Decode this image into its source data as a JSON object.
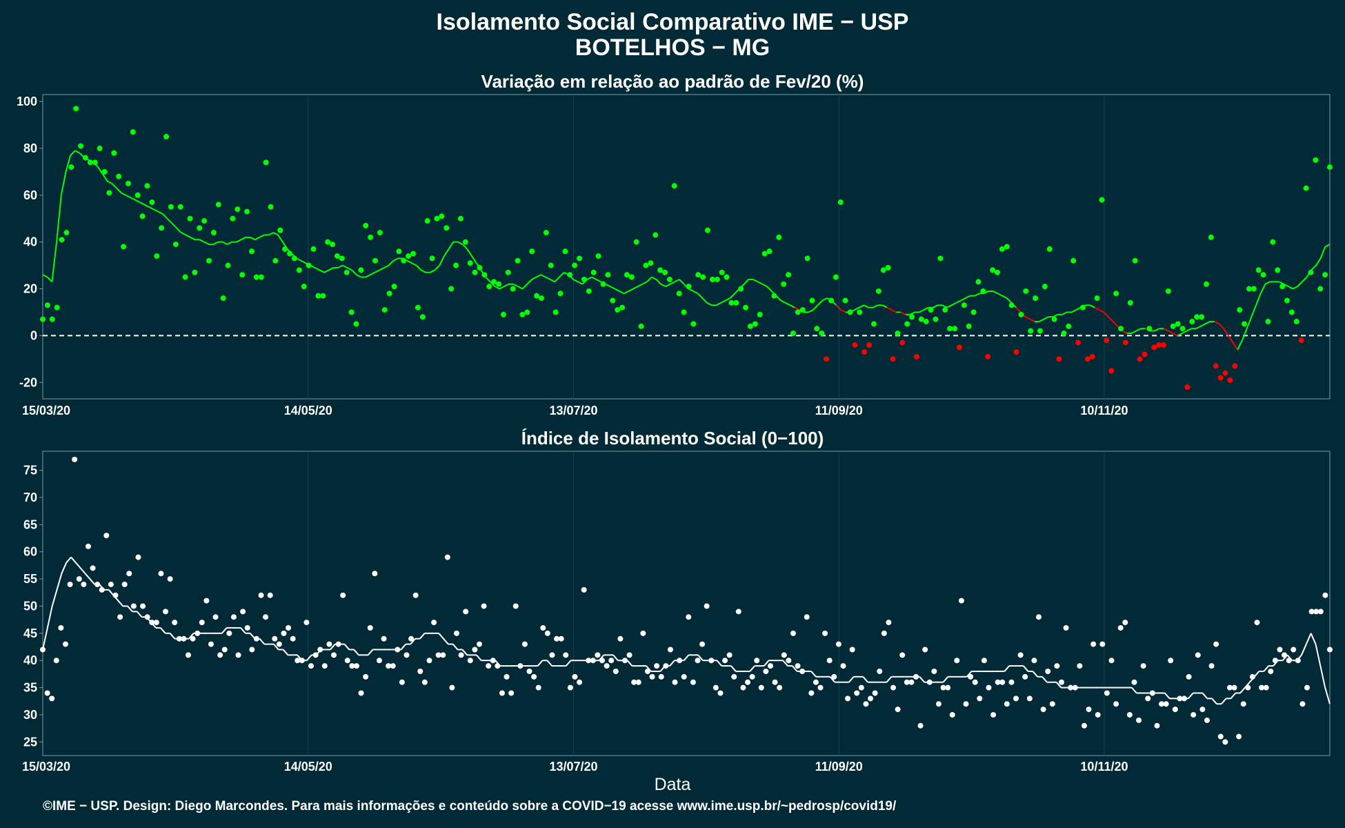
{
  "header": {
    "title": "Isolamento Social Comparativo IME − USP",
    "subtitle": "BOTELHOS − MG"
  },
  "footer": {
    "xlabel": "Data",
    "credit": "©IME − USP. Design: Diego Marcondes. Para mais informações e conteúdo sobre a COVID−19 acesse www.ime.usp.br/~pedrosp/covid19/"
  },
  "colors": {
    "background": "#022a36",
    "positive": "#00ff00",
    "negative": "#ff0000",
    "index": "#ffffff",
    "grid": "#16424d"
  },
  "chart_data": [
    {
      "type": "scatter",
      "title": "Variação em relação ao padrão de Fev/20 (%)",
      "xlabel": "",
      "ylabel": "",
      "x_start": "2020-03-15",
      "x_end": "2020-12-31",
      "x_ticks": [
        "15/03/20",
        "14/05/20",
        "13/07/20",
        "11/09/20",
        "10/11/20"
      ],
      "y_ticks": [
        -20,
        0,
        20,
        40,
        60,
        80,
        100
      ],
      "ylim": [
        -27,
        103
      ],
      "reference_line": 0,
      "grid": true,
      "series": [
        {
          "style": "points",
          "values": [
            7,
            13,
            7,
            12,
            41,
            44,
            72,
            97,
            81,
            76,
            74,
            74,
            80,
            70,
            61,
            78,
            68,
            38,
            65,
            87,
            60,
            51,
            64,
            57,
            34,
            46,
            85,
            55,
            39,
            55,
            25,
            50,
            27,
            46,
            49,
            32,
            44,
            56,
            16,
            30,
            50,
            54,
            26,
            53,
            36,
            25,
            25,
            74,
            55,
            32,
            45,
            37,
            35,
            33,
            28,
            21,
            30,
            37,
            17,
            17,
            40,
            39,
            34,
            33,
            27,
            10,
            5,
            28,
            47,
            42,
            32,
            44,
            11,
            18,
            21,
            36,
            32,
            34,
            35,
            12,
            8,
            49,
            33,
            50,
            51,
            46,
            20,
            30,
            50,
            40,
            31,
            27,
            29,
            26,
            21,
            23,
            22,
            9,
            27,
            20,
            32,
            9,
            10,
            36,
            17,
            16,
            44,
            30,
            10,
            18,
            36,
            26,
            30,
            33,
            24,
            19,
            27,
            34,
            22,
            26,
            15,
            11,
            12,
            26,
            25,
            40,
            4,
            30,
            31,
            43,
            28,
            27,
            24,
            64,
            18,
            10,
            21,
            5,
            26,
            25,
            45,
            24,
            24,
            27,
            25,
            14,
            14,
            20,
            12,
            4,
            5,
            9,
            35,
            36,
            17,
            42,
            22,
            26,
            1,
            10,
            11,
            33,
            15,
            3,
            1,
            -10,
            15,
            25,
            57,
            15,
            10,
            -4,
            10,
            -7,
            -4,
            5,
            19,
            28,
            29,
            -10,
            1,
            -3,
            5,
            8,
            -9,
            7,
            6,
            11,
            7,
            33,
            11,
            3,
            3,
            -5,
            13,
            4,
            10,
            23,
            19,
            -9,
            28,
            27,
            37,
            38,
            13,
            -7,
            9,
            19,
            2,
            16,
            2,
            21,
            37,
            7,
            -10,
            1,
            4,
            32,
            -3,
            12,
            -10,
            -9,
            16,
            58,
            -2,
            -15,
            18,
            3,
            -3,
            14,
            32,
            -10,
            -8,
            3,
            -5,
            -4,
            -4,
            19,
            4,
            5,
            3,
            -22,
            6,
            8,
            8,
            22,
            42,
            -13,
            -18,
            -16,
            -19,
            -13,
            11,
            5,
            20,
            20,
            28,
            26,
            6,
            40,
            28,
            21,
            15,
            10,
            6,
            -2,
            63,
            27,
            75,
            20,
            26,
            72
          ],
          "values_note_last": [
            20,
            26,
            72,
            20
          ]
        },
        {
          "style": "line",
          "name": "",
          "values": [
            26,
            25,
            23,
            40,
            60,
            70,
            77,
            79,
            78,
            76,
            75,
            74,
            72,
            69,
            66,
            65,
            63,
            61,
            60,
            59,
            58,
            57,
            56,
            55,
            54,
            53,
            52,
            50,
            48,
            46,
            44,
            43,
            42,
            41,
            41,
            40,
            39,
            39,
            40,
            40,
            39,
            40,
            40,
            41,
            42,
            42,
            41,
            42,
            43,
            43,
            44,
            43,
            40,
            37,
            35,
            33,
            32,
            31,
            30,
            29,
            28,
            27,
            28,
            29,
            29,
            30,
            29,
            28,
            26,
            25,
            25,
            26,
            27,
            28,
            29,
            30,
            32,
            33,
            33,
            32,
            31,
            30,
            28,
            27,
            27,
            28,
            30,
            34,
            37,
            40,
            40,
            39,
            37,
            34,
            31,
            28,
            25,
            23,
            21,
            20,
            21,
            22,
            22,
            21,
            20,
            22,
            24,
            25,
            26,
            25,
            24,
            23,
            25,
            27,
            26,
            24,
            23,
            22,
            24,
            25,
            24,
            23,
            22,
            21,
            20,
            19,
            18,
            19,
            20,
            21,
            22,
            23,
            25,
            24,
            22,
            21,
            22,
            23,
            24,
            22,
            20,
            19,
            18,
            16,
            14,
            13,
            13,
            14,
            15,
            16,
            18,
            20,
            22,
            24,
            24,
            23,
            22,
            21,
            19,
            17,
            15,
            14,
            13,
            12,
            11,
            10,
            10,
            11,
            13,
            15,
            16,
            15,
            13,
            11,
            10,
            10,
            11,
            12,
            13,
            12,
            12,
            13,
            13,
            12,
            11,
            10,
            10,
            9,
            9,
            10,
            10,
            11,
            12,
            12,
            13,
            13,
            12,
            13,
            14,
            15,
            16,
            17,
            17,
            18,
            18,
            19,
            19,
            18,
            17,
            16,
            14,
            12,
            10,
            8,
            7,
            6,
            6,
            7,
            8,
            8,
            9,
            9,
            10,
            10,
            11,
            12,
            13,
            13,
            12,
            11,
            10,
            8,
            6,
            4,
            2,
            1,
            1,
            2,
            3,
            3,
            2,
            2,
            3,
            3,
            2,
            1,
            0,
            1,
            2,
            3,
            3,
            4,
            5,
            6,
            6,
            5,
            3,
            0,
            -3,
            -6,
            -2,
            3,
            8,
            13,
            18,
            22,
            23,
            23,
            23,
            22,
            21,
            20,
            21,
            23,
            25,
            28,
            30,
            33,
            38,
            39
          ],
          "negative_color_note": "line segments below previous day shown in red"
        }
      ]
    },
    {
      "type": "scatter",
      "title": "Índice de Isolamento Social (0−100)",
      "xlabel": "Data",
      "ylabel": "",
      "x_start": "2020-03-15",
      "x_end": "2020-12-31",
      "x_ticks": [
        "15/03/20",
        "14/05/20",
        "13/07/20",
        "11/09/20",
        "10/11/20"
      ],
      "y_ticks": [
        25,
        30,
        35,
        40,
        45,
        50,
        55,
        60,
        65,
        70,
        75
      ],
      "ylim": [
        22.5,
        78.5
      ],
      "grid": true,
      "series": [
        {
          "style": "points",
          "values": [
            42,
            34,
            33,
            40,
            46,
            43,
            54,
            77,
            55,
            54,
            61,
            57,
            54,
            53,
            63,
            54,
            52,
            48,
            54,
            56,
            50,
            59,
            50,
            48,
            47,
            47,
            56,
            49,
            55,
            47,
            44,
            44,
            41,
            44,
            45,
            47,
            51,
            43,
            48,
            41,
            42,
            45,
            48,
            41,
            49,
            46,
            42,
            44,
            52,
            48,
            52,
            44,
            43,
            45,
            46,
            44,
            40,
            40,
            47,
            39,
            41,
            42,
            39,
            43,
            41,
            43,
            52,
            40,
            39,
            39,
            34,
            37,
            46,
            56,
            40,
            44,
            39,
            39,
            42,
            36,
            41,
            44,
            52,
            38,
            36,
            40,
            47,
            41,
            41,
            59,
            35,
            45,
            41,
            49,
            40,
            42,
            43,
            50,
            39,
            40,
            39,
            34,
            37,
            34,
            50,
            39,
            43,
            38,
            37,
            35,
            46,
            45,
            41,
            44,
            44,
            41,
            35,
            37,
            36,
            53,
            40,
            40,
            41,
            40,
            39,
            40,
            38,
            44,
            40,
            41,
            36,
            36,
            45,
            38,
            37,
            39,
            37,
            39,
            42,
            36,
            40,
            37,
            48,
            36,
            40,
            43,
            50,
            40,
            35,
            34,
            40,
            41,
            37,
            49,
            35,
            36,
            37,
            40,
            35,
            38,
            39,
            36,
            35,
            41,
            40,
            45,
            39,
            38,
            48,
            34,
            36,
            35,
            45,
            40,
            37,
            43,
            39,
            33,
            42,
            34,
            35,
            32,
            33,
            34,
            38,
            45,
            47,
            35,
            31,
            41,
            36,
            36,
            37,
            28,
            42,
            36,
            38,
            32,
            35,
            35,
            30,
            40,
            51,
            32,
            37,
            36,
            33,
            40,
            35,
            30,
            36,
            36,
            32,
            36,
            33,
            41,
            37,
            33,
            40,
            48,
            31,
            38,
            32,
            39,
            36,
            46,
            35,
            35,
            39,
            28,
            31,
            43,
            30,
            43,
            34,
            40,
            32,
            46,
            47,
            30,
            36,
            29,
            39,
            33,
            34,
            28,
            32,
            32,
            40,
            31,
            33,
            33,
            37,
            30,
            41,
            31,
            29,
            39,
            43,
            26,
            25,
            35,
            35,
            26,
            32,
            35,
            37,
            47,
            35,
            35,
            38,
            40,
            42,
            41,
            40,
            42,
            40,
            32,
            35,
            49,
            49,
            49,
            52,
            42
          ],
          "values_note_last": []
        },
        {
          "style": "line",
          "name": "",
          "values": [
            42,
            46,
            50,
            53,
            56,
            58,
            59,
            58,
            57,
            56,
            55,
            54,
            54,
            53,
            53,
            52,
            51,
            50,
            50,
            49,
            49,
            48,
            48,
            47,
            46,
            46,
            45,
            45,
            44,
            44,
            44,
            44,
            45,
            45,
            45,
            45,
            45,
            45,
            45,
            46,
            46,
            46,
            46,
            45,
            45,
            44,
            44,
            43,
            43,
            43,
            42,
            42,
            41,
            41,
            41,
            40,
            40,
            41,
            41,
            42,
            42,
            42,
            43,
            43,
            43,
            42,
            42,
            41,
            41,
            41,
            42,
            42,
            42,
            42,
            42,
            42,
            42,
            43,
            43,
            44,
            44,
            45,
            45,
            45,
            45,
            44,
            43,
            43,
            42,
            42,
            41,
            41,
            41,
            40,
            40,
            40,
            40,
            39,
            39,
            39,
            39,
            39,
            39,
            39,
            39,
            39,
            40,
            40,
            39,
            39,
            39,
            39,
            40,
            40,
            40,
            40,
            40,
            40,
            40,
            41,
            41,
            41,
            40,
            40,
            40,
            39,
            39,
            39,
            39,
            38,
            38,
            38,
            39,
            39,
            40,
            40,
            40,
            41,
            41,
            41,
            40,
            40,
            40,
            40,
            39,
            39,
            39,
            38,
            38,
            38,
            38,
            39,
            39,
            39,
            40,
            40,
            40,
            40,
            39,
            39,
            38,
            38,
            38,
            38,
            37,
            37,
            37,
            37,
            36,
            36,
            36,
            36,
            37,
            37,
            37,
            36,
            36,
            36,
            36,
            36,
            37,
            37,
            37,
            37,
            37,
            37,
            37,
            36,
            36,
            36,
            36,
            36,
            37,
            37,
            37,
            37,
            37,
            38,
            38,
            38,
            38,
            38,
            38,
            38,
            38,
            39,
            39,
            39,
            39,
            38,
            38,
            37,
            37,
            36,
            36,
            36,
            35,
            35,
            35,
            35,
            35,
            35,
            35,
            35,
            35,
            35,
            35,
            35,
            35,
            35,
            35,
            35,
            34,
            34,
            34,
            34,
            34,
            34,
            34,
            33,
            33,
            33,
            33,
            33,
            34,
            34,
            34,
            33,
            33,
            32,
            32,
            33,
            33,
            34,
            34,
            35,
            36,
            37,
            38,
            38,
            39,
            39,
            40,
            40,
            41,
            40,
            40,
            41,
            43,
            45,
            43,
            39,
            35,
            32
          ]
        }
      ]
    }
  ]
}
